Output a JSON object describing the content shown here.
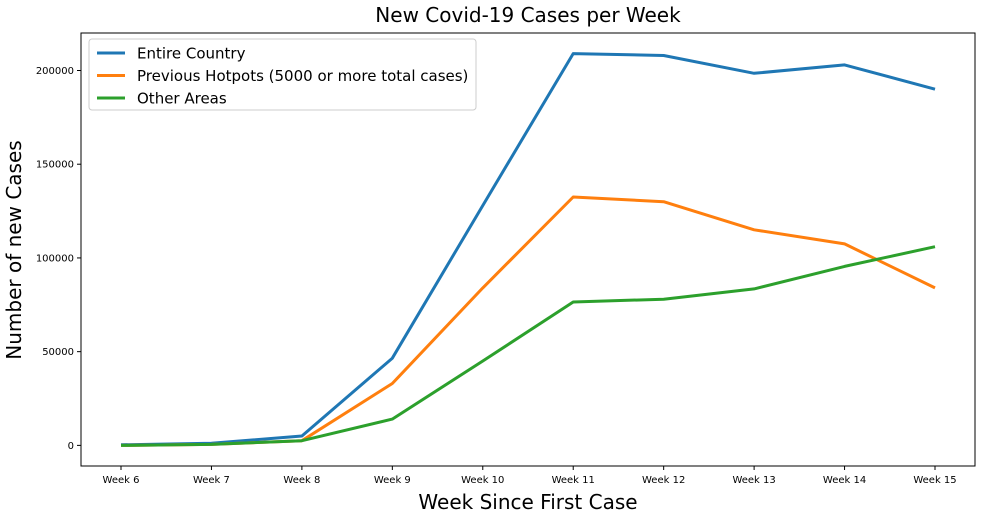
{
  "chart_data": {
    "type": "line",
    "title": "New Covid-19 Cases per Week",
    "xlabel": "Week Since First Case",
    "ylabel": "Number of new Cases",
    "categories": [
      "Week 6",
      "Week 7",
      "Week 8",
      "Week 9",
      "Week 10",
      "Week 11",
      "Week 12",
      "Week 13",
      "Week 14",
      "Week 15"
    ],
    "yticks": [
      0,
      50000,
      100000,
      150000,
      200000
    ],
    "ytick_labels": [
      "0",
      "50000",
      "100000",
      "150000",
      "200000"
    ],
    "ylim": [
      -11000,
      220000
    ],
    "grid": false,
    "legend_position": "top-left",
    "series": [
      {
        "name": "Entire Country",
        "color": "#1f77b4",
        "values": [
          300,
          1100,
          5000,
          46500,
          128000,
          209000,
          208000,
          198500,
          203000,
          190000
        ]
      },
      {
        "name": "Previous Hotpots (5000 or more total cases)",
        "color": "#ff7f0e",
        "values": [
          0,
          500,
          2500,
          33000,
          84000,
          132500,
          130000,
          115000,
          107500,
          84000
        ]
      },
      {
        "name": "Other Areas",
        "color": "#2ca02c",
        "values": [
          0,
          500,
          2500,
          14000,
          45000,
          76500,
          78000,
          83500,
          95500,
          106000
        ]
      }
    ]
  }
}
